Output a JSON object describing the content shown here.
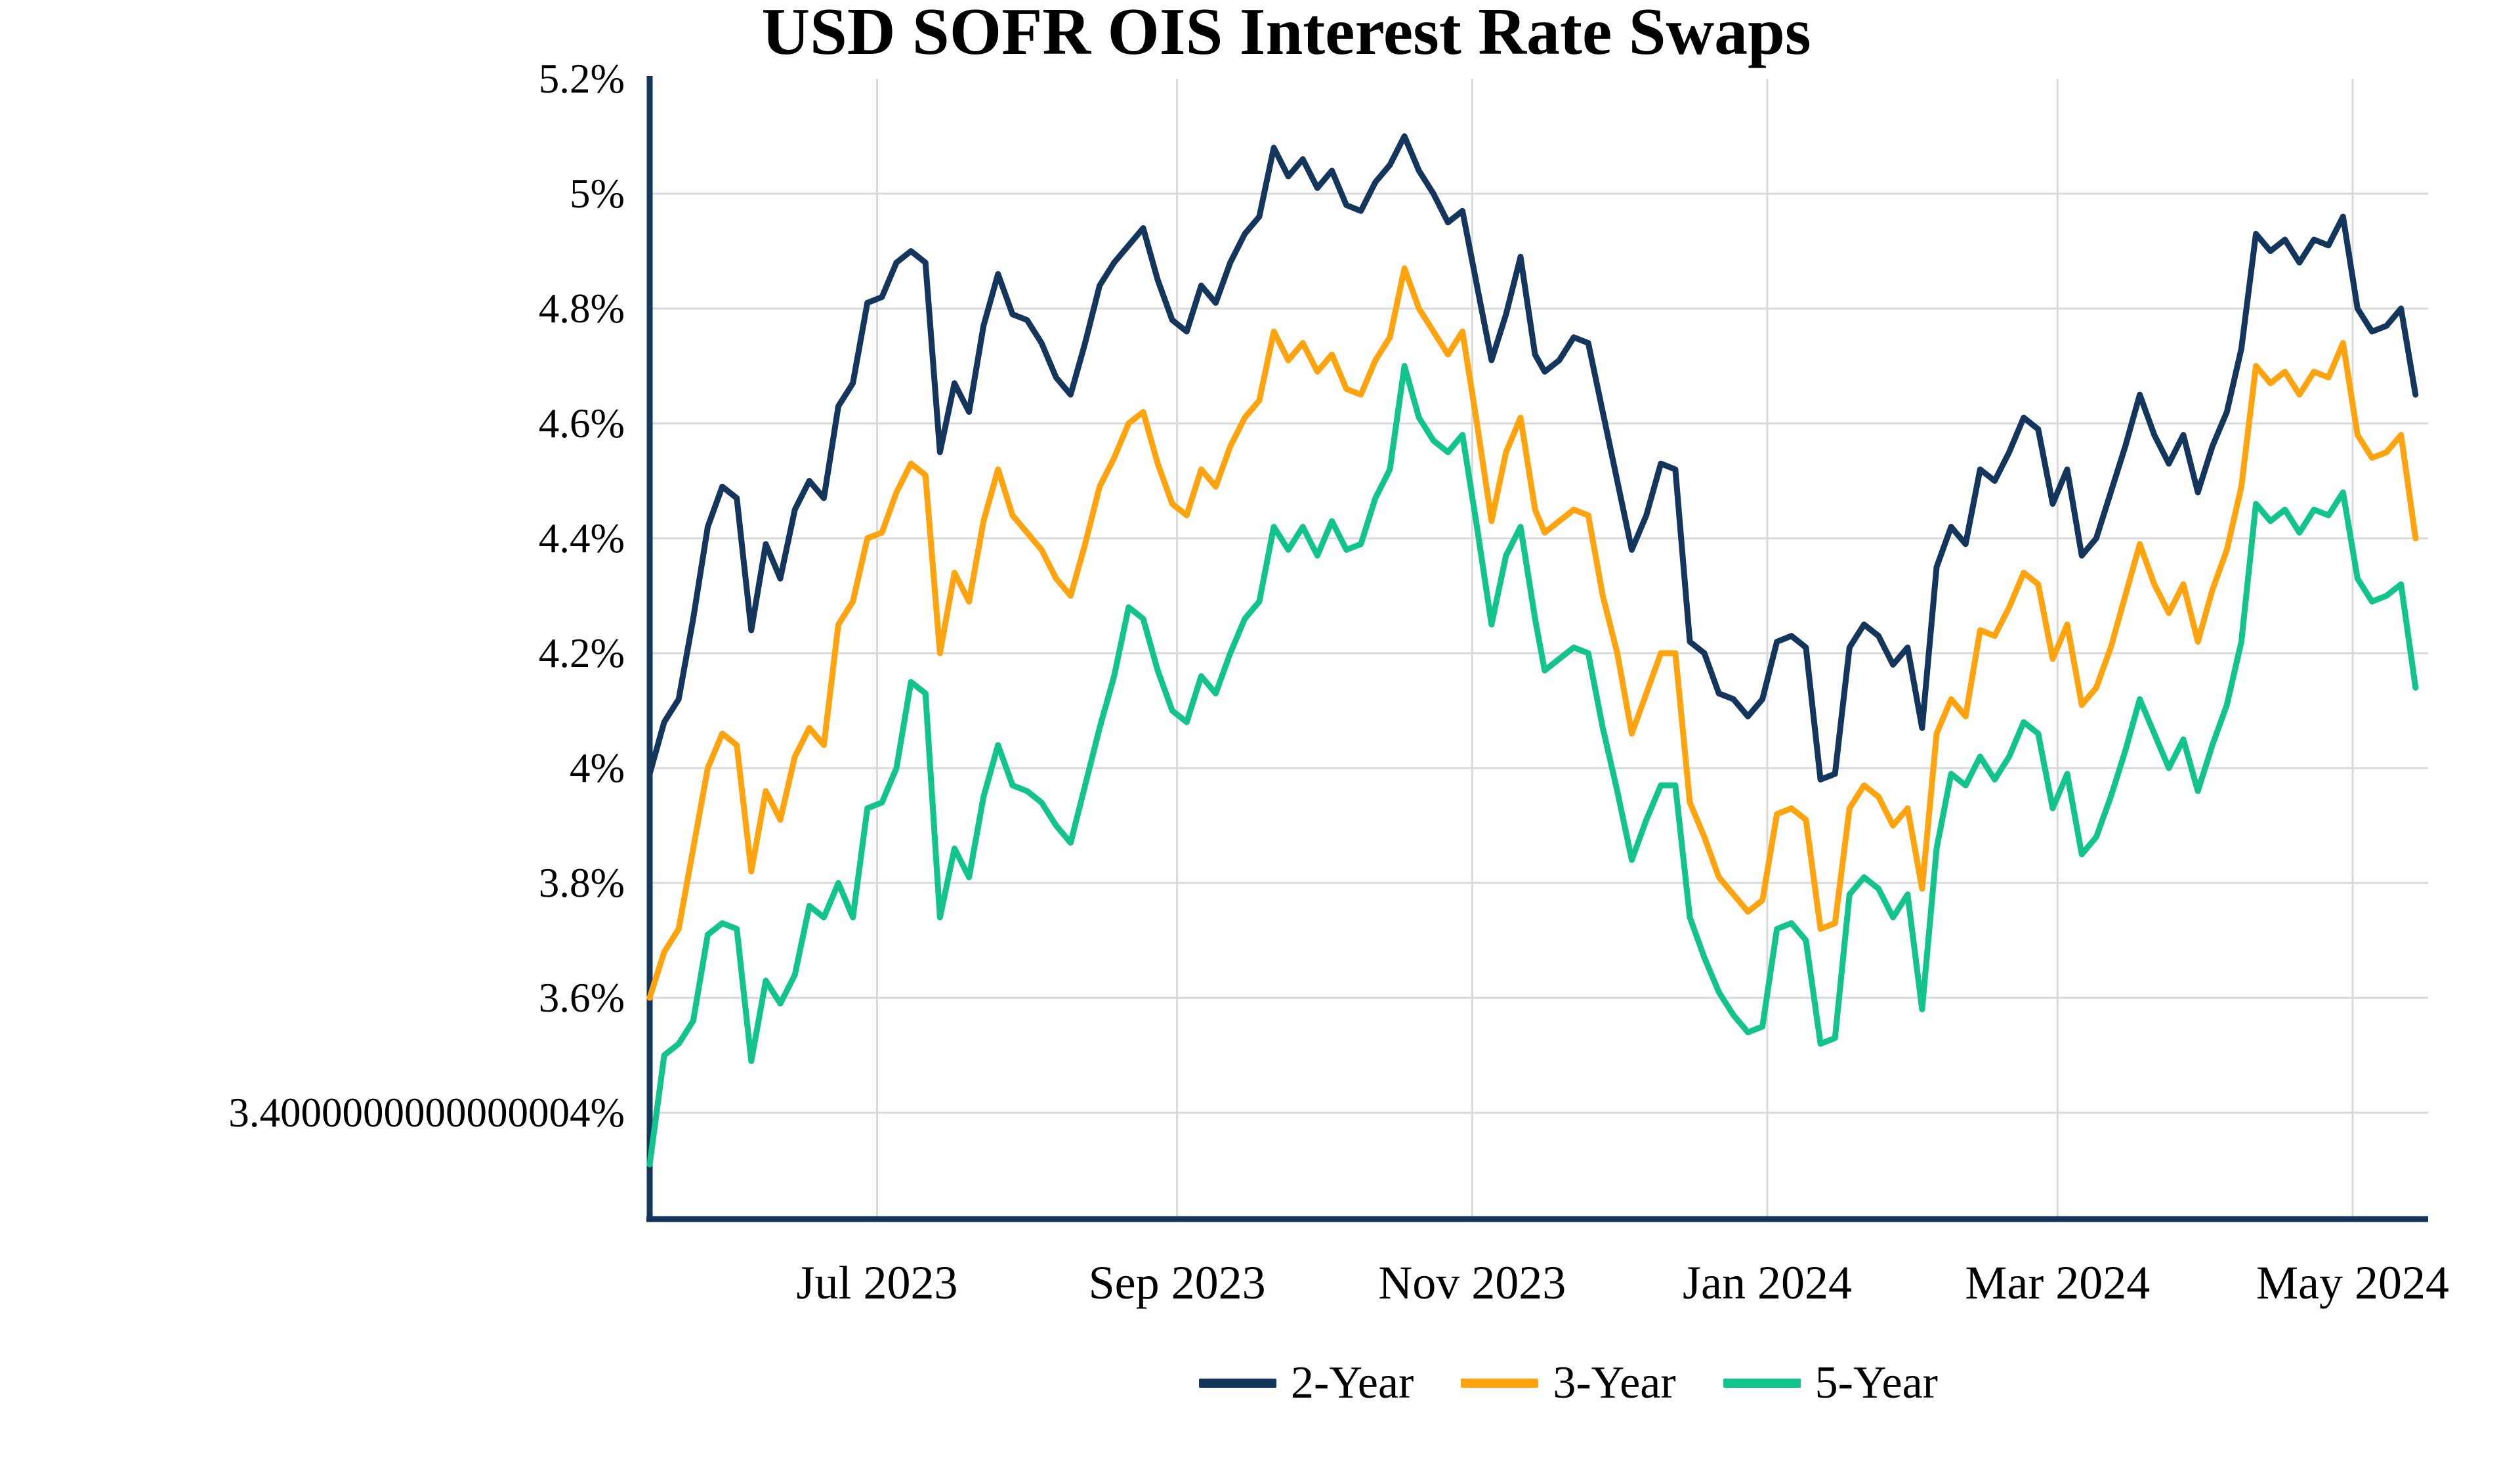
{
  "title": "USD SOFR OIS Interest Rate Swaps",
  "chart_data": {
    "type": "line",
    "title": "USD SOFR OIS Interest Rate Swaps",
    "xlabel": "",
    "ylabel": "",
    "grid": true,
    "legend_position": "bottom",
    "background_color": "#ffffff",
    "gridline_color": "#d9d9d9",
    "axis_color": "#15365c",
    "text_color": "#000000",
    "x_unit": "days since 2023-05-15",
    "x_domain": [
      0,
      365
    ],
    "ylim": [
      3.214,
      5.2
    ],
    "y_ticks": [
      {
        "value": 5.2,
        "label": "5.2%"
      },
      {
        "value": 5.0,
        "label": "5%"
      },
      {
        "value": 4.8,
        "label": "4.8%"
      },
      {
        "value": 4.6,
        "label": "4.6%"
      },
      {
        "value": 4.4,
        "label": "4.4%"
      },
      {
        "value": 4.2,
        "label": "4.2%"
      },
      {
        "value": 4.0,
        "label": "4%"
      },
      {
        "value": 3.8,
        "label": "3.8%"
      },
      {
        "value": 3.6,
        "label": "3.6%"
      },
      {
        "value": 3.4,
        "label": "3.4000000000000004%"
      }
    ],
    "x_ticks": [
      {
        "day": 47,
        "label": "Jul 2023"
      },
      {
        "day": 109,
        "label": "Sep 2023"
      },
      {
        "day": 170,
        "label": "Nov 2023"
      },
      {
        "day": 231,
        "label": "Jan 2024"
      },
      {
        "day": 291,
        "label": "Mar 2024"
      },
      {
        "day": 352,
        "label": "May 2024"
      }
    ],
    "series": [
      {
        "name": "2-Year",
        "color": "#15365c",
        "values": [
          3.99,
          4.08,
          4.12,
          4.26,
          4.42,
          4.49,
          4.47,
          4.24,
          4.39,
          4.33,
          4.45,
          4.5,
          4.47,
          4.63,
          4.67,
          4.81,
          4.82,
          4.88,
          4.9,
          4.88,
          4.55,
          4.67,
          4.62,
          4.77,
          4.86,
          4.79,
          4.78,
          4.74,
          4.68,
          4.65,
          4.74,
          4.84,
          4.88,
          4.91,
          4.94,
          4.85,
          4.78,
          4.76,
          4.84,
          4.81,
          4.88,
          4.93,
          4.96,
          5.08,
          5.03,
          5.06,
          5.01,
          5.04,
          4.98,
          4.97,
          5.02,
          5.05,
          5.1,
          5.04,
          5.0,
          4.95,
          4.97,
          4.84,
          4.71,
          4.79,
          4.89,
          4.72,
          4.69,
          4.71,
          4.75,
          4.74,
          4.62,
          4.5,
          4.38,
          4.44,
          4.53,
          4.52,
          4.22,
          4.2,
          4.13,
          4.12,
          4.09,
          4.12,
          4.22,
          4.23,
          4.21,
          3.98,
          3.99,
          4.21,
          4.25,
          4.23,
          4.18,
          4.21,
          4.07,
          4.35,
          4.42,
          4.39,
          4.52,
          4.5,
          4.55,
          4.61,
          4.59,
          4.46,
          4.52,
          4.37,
          4.4,
          4.48,
          4.56,
          4.65,
          4.58,
          4.53,
          4.58,
          4.48,
          4.56,
          4.62,
          4.73,
          4.93,
          4.9,
          4.92,
          4.88,
          4.92,
          4.91,
          4.96,
          4.8,
          4.76,
          4.77,
          4.8,
          4.65
        ]
      },
      {
        "name": "3-Year",
        "color": "#ffa30f",
        "values": [
          3.6,
          3.68,
          3.72,
          3.86,
          4.0,
          4.06,
          4.04,
          3.82,
          3.96,
          3.91,
          4.02,
          4.07,
          4.04,
          4.25,
          4.29,
          4.4,
          4.41,
          4.48,
          4.53,
          4.51,
          4.2,
          4.34,
          4.29,
          4.43,
          4.52,
          4.44,
          4.41,
          4.38,
          4.33,
          4.3,
          4.39,
          4.49,
          4.54,
          4.6,
          4.62,
          4.53,
          4.46,
          4.44,
          4.52,
          4.49,
          4.56,
          4.61,
          4.64,
          4.76,
          4.71,
          4.74,
          4.69,
          4.72,
          4.66,
          4.65,
          4.71,
          4.75,
          4.87,
          4.8,
          4.76,
          4.72,
          4.76,
          4.6,
          4.43,
          4.55,
          4.61,
          4.45,
          4.41,
          4.43,
          4.45,
          4.44,
          4.3,
          4.2,
          4.06,
          4.13,
          4.2,
          4.2,
          3.94,
          3.88,
          3.81,
          3.78,
          3.75,
          3.77,
          3.92,
          3.93,
          3.91,
          3.72,
          3.73,
          3.93,
          3.97,
          3.95,
          3.9,
          3.93,
          3.79,
          4.06,
          4.12,
          4.09,
          4.24,
          4.23,
          4.28,
          4.34,
          4.32,
          4.19,
          4.25,
          4.11,
          4.14,
          4.21,
          4.3,
          4.39,
          4.32,
          4.27,
          4.32,
          4.22,
          4.31,
          4.38,
          4.49,
          4.7,
          4.67,
          4.69,
          4.65,
          4.69,
          4.68,
          4.74,
          4.58,
          4.54,
          4.55,
          4.58,
          4.4
        ]
      },
      {
        "name": "5-Year",
        "color": "#12c48b",
        "values": [
          3.31,
          3.5,
          3.52,
          3.56,
          3.71,
          3.73,
          3.72,
          3.49,
          3.63,
          3.59,
          3.64,
          3.76,
          3.74,
          3.8,
          3.74,
          3.93,
          3.94,
          4.0,
          4.15,
          4.13,
          3.74,
          3.86,
          3.81,
          3.95,
          4.04,
          3.97,
          3.96,
          3.94,
          3.9,
          3.87,
          3.97,
          4.07,
          4.16,
          4.28,
          4.26,
          4.17,
          4.1,
          4.08,
          4.16,
          4.13,
          4.2,
          4.26,
          4.29,
          4.42,
          4.38,
          4.42,
          4.37,
          4.43,
          4.38,
          4.39,
          4.47,
          4.52,
          4.7,
          4.61,
          4.57,
          4.55,
          4.58,
          4.42,
          4.25,
          4.37,
          4.42,
          4.26,
          4.17,
          4.19,
          4.21,
          4.2,
          4.07,
          3.96,
          3.84,
          3.91,
          3.97,
          3.97,
          3.74,
          3.67,
          3.61,
          3.57,
          3.54,
          3.55,
          3.72,
          3.73,
          3.7,
          3.52,
          3.53,
          3.78,
          3.81,
          3.79,
          3.74,
          3.78,
          3.58,
          3.86,
          3.99,
          3.97,
          4.02,
          3.98,
          4.02,
          4.08,
          4.06,
          3.93,
          3.99,
          3.85,
          3.88,
          3.95,
          4.03,
          4.12,
          4.06,
          4.0,
          4.05,
          3.96,
          4.04,
          4.11,
          4.22,
          4.46,
          4.43,
          4.45,
          4.41,
          4.45,
          4.44,
          4.48,
          4.33,
          4.29,
          4.3,
          4.32,
          4.14
        ]
      }
    ]
  }
}
